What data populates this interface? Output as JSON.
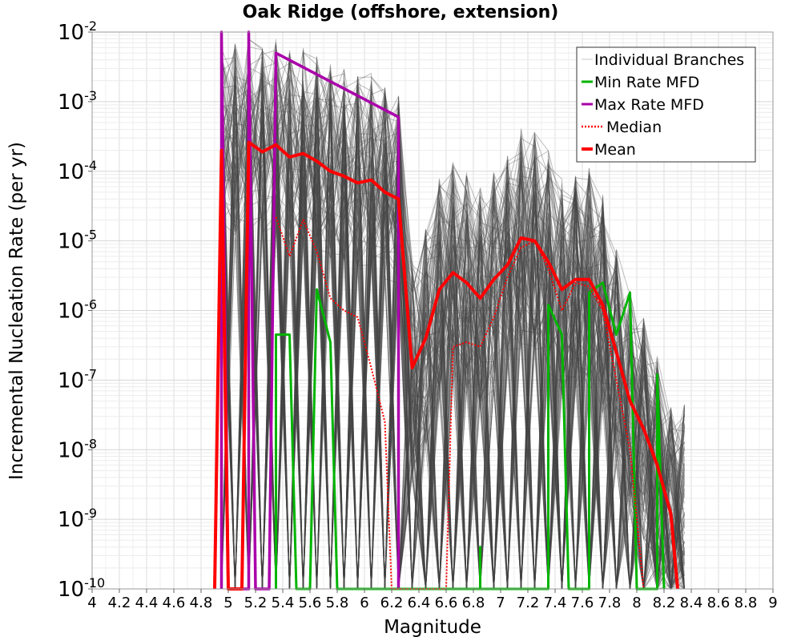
{
  "chart_data": {
    "type": "line",
    "title": "Oak Ridge (offshore, extension)",
    "xlabel": "Magnitude",
    "ylabel": "Incremental Nucleation Rate (per yr)",
    "xlim": [
      4,
      9
    ],
    "ylim": [
      1e-10,
      0.01
    ],
    "yscale": "log",
    "grid": true,
    "legend_position": "top-right",
    "x_ticks": [
      "4",
      "4.2",
      "4.4",
      "4.6",
      "4.8",
      "5",
      "5.2",
      "5.4",
      "5.6",
      "5.8",
      "6",
      "6.2",
      "6.4",
      "6.6",
      "6.8",
      "7",
      "7.2",
      "7.4",
      "7.6",
      "7.8",
      "8",
      "8.2",
      "8.4",
      "8.6",
      "8.8",
      "9"
    ],
    "y_ticks": [
      {
        "base": "10",
        "exp": "-2",
        "value": 0.01
      },
      {
        "base": "10",
        "exp": "-3",
        "value": 0.001
      },
      {
        "base": "10",
        "exp": "-4",
        "value": 0.0001
      },
      {
        "base": "10",
        "exp": "-5",
        "value": 1e-05
      },
      {
        "base": "10",
        "exp": "-6",
        "value": 1e-06
      },
      {
        "base": "10",
        "exp": "-7",
        "value": 1e-07
      },
      {
        "base": "10",
        "exp": "-8",
        "value": 1e-08
      },
      {
        "base": "10",
        "exp": "-9",
        "value": 1e-09
      },
      {
        "base": "10",
        "exp": "-10",
        "value": 1e-10
      }
    ],
    "legend": [
      {
        "label": "Individual Branches",
        "color": "#c8c8c8",
        "style": "solid"
      },
      {
        "label": "Min Rate MFD",
        "color": "#00b400",
        "style": "solid"
      },
      {
        "label": "Max Rate MFD",
        "color": "#aa00aa",
        "style": "solid"
      },
      {
        "label": "Median",
        "color": "#ff0000",
        "style": "dotted"
      },
      {
        "label": "Mean",
        "color": "#ff0000",
        "style": "solid"
      }
    ],
    "series": [
      {
        "name": "Max Rate MFD",
        "color": "#aa00aa",
        "width": 3.5,
        "style": "solid",
        "points": [
          [
            4.95,
            1e-10
          ],
          [
            4.95,
            0.01
          ],
          [
            5.0,
            1e-10
          ],
          [
            5.15,
            1e-10
          ],
          [
            5.15,
            0.01
          ],
          [
            5.2,
            1e-10
          ],
          [
            5.3,
            1e-10
          ],
          [
            5.35,
            0.005
          ],
          [
            6.25,
            0.0006
          ],
          [
            6.25,
            1e-10
          ]
        ]
      },
      {
        "name": "Min Rate MFD",
        "color": "#00b400",
        "width": 3,
        "style": "solid",
        "points": [
          [
            5.35,
            1e-10
          ],
          [
            5.35,
            4.5e-07
          ],
          [
            5.45,
            4.5e-07
          ],
          [
            5.5,
            1e-10
          ],
          [
            5.6,
            1e-10
          ],
          [
            5.65,
            2e-06
          ],
          [
            5.75,
            3.5e-07
          ],
          [
            5.8,
            1e-10
          ],
          [
            6.85,
            1e-10
          ],
          [
            6.85,
            4e-10
          ],
          [
            6.85,
            1e-10
          ],
          [
            7.35,
            1e-10
          ],
          [
            7.35,
            1.2e-06
          ],
          [
            7.45,
            4.5e-07
          ],
          [
            7.5,
            1e-10
          ],
          [
            7.65,
            1e-10
          ],
          [
            7.65,
            1.8e-06
          ],
          [
            7.75,
            2.5e-06
          ],
          [
            7.85,
            4.5e-07
          ],
          [
            7.95,
            1.8e-06
          ],
          [
            8.0,
            1e-10
          ],
          [
            8.15,
            1e-10
          ],
          [
            8.15,
            1.2e-07
          ],
          [
            8.2,
            1e-10
          ]
        ]
      },
      {
        "name": "Median",
        "color": "#ff0000",
        "width": 2,
        "style": "dotted",
        "points": [
          [
            5.35,
            2.2e-05
          ],
          [
            5.45,
            6e-06
          ],
          [
            5.55,
            2e-05
          ],
          [
            5.65,
            7e-06
          ],
          [
            5.75,
            1.5e-06
          ],
          [
            5.85,
            1e-06
          ],
          [
            5.95,
            8e-07
          ],
          [
            6.05,
            1.5e-07
          ],
          [
            6.15,
            2.5e-08
          ],
          [
            6.2,
            1e-10
          ],
          [
            6.6,
            1e-10
          ],
          [
            6.65,
            3e-07
          ],
          [
            6.75,
            3.5e-07
          ],
          [
            6.85,
            3e-07
          ],
          [
            6.95,
            8e-07
          ],
          [
            7.05,
            3e-06
          ],
          [
            7.15,
            8e-06
          ],
          [
            7.25,
            1e-05
          ],
          [
            7.35,
            4e-06
          ],
          [
            7.45,
            1e-06
          ],
          [
            7.55,
            2.5e-06
          ],
          [
            7.65,
            2.2e-06
          ],
          [
            7.75,
            1e-06
          ],
          [
            7.85,
            1e-07
          ],
          [
            7.95,
            1e-08
          ],
          [
            8.0,
            1e-09
          ],
          [
            8.05,
            1e-10
          ]
        ]
      },
      {
        "name": "Mean",
        "color": "#ff0000",
        "width": 4,
        "style": "solid",
        "points": [
          [
            4.9,
            1e-10
          ],
          [
            4.95,
            0.0002
          ],
          [
            5.0,
            1e-10
          ],
          [
            5.1,
            1e-10
          ],
          [
            5.15,
            0.00026
          ],
          [
            5.25,
            0.00019
          ],
          [
            5.35,
            0.00024
          ],
          [
            5.45,
            0.00016
          ],
          [
            5.55,
            0.00018
          ],
          [
            5.65,
            0.00014
          ],
          [
            5.75,
            0.0001
          ],
          [
            5.85,
            8.5e-05
          ],
          [
            5.95,
            6.8e-05
          ],
          [
            6.05,
            7.5e-05
          ],
          [
            6.15,
            5e-05
          ],
          [
            6.25,
            4e-05
          ],
          [
            6.35,
            1.5e-07
          ],
          [
            6.45,
            4e-07
          ],
          [
            6.55,
            2e-06
          ],
          [
            6.65,
            3.5e-06
          ],
          [
            6.75,
            2.5e-06
          ],
          [
            6.85,
            1.5e-06
          ],
          [
            6.95,
            2.8e-06
          ],
          [
            7.05,
            4.5e-06
          ],
          [
            7.15,
            1.1e-05
          ],
          [
            7.25,
            1e-05
          ],
          [
            7.35,
            5e-06
          ],
          [
            7.45,
            2e-06
          ],
          [
            7.55,
            2.8e-06
          ],
          [
            7.65,
            2.8e-06
          ],
          [
            7.75,
            1.2e-06
          ],
          [
            7.85,
            2.5e-07
          ],
          [
            7.95,
            5e-08
          ],
          [
            8.05,
            2e-08
          ],
          [
            8.15,
            6e-09
          ],
          [
            8.25,
            1.2e-09
          ],
          [
            8.3,
            1e-10
          ]
        ]
      }
    ]
  }
}
